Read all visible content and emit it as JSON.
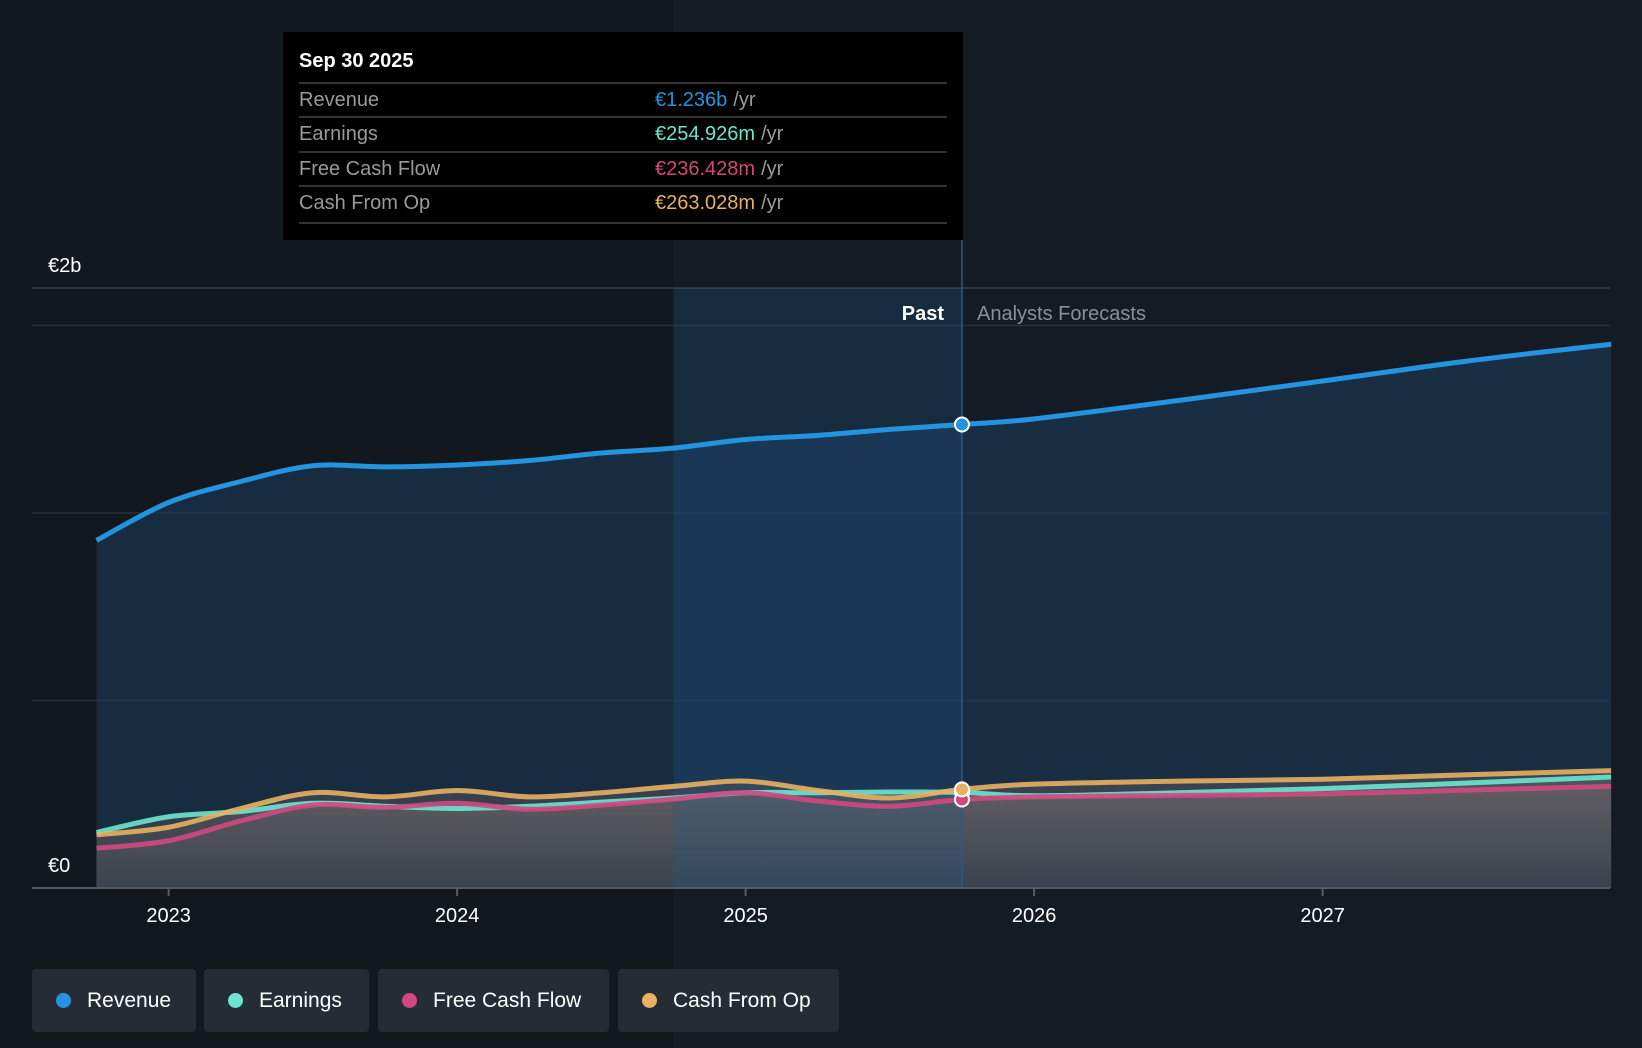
{
  "tooltip": {
    "date": "Sep 30 2025",
    "rows": [
      {
        "label": "Revenue",
        "value": "€1.236b",
        "unit": "/yr",
        "color": "#2394df"
      },
      {
        "label": "Earnings",
        "value": "€254.926m",
        "unit": "/yr",
        "color": "#6ce5d0"
      },
      {
        "label": "Free Cash Flow",
        "value": "€236.428m",
        "unit": "/yr",
        "color": "#d1487f"
      },
      {
        "label": "Cash From Op",
        "value": "€263.028m",
        "unit": "/yr",
        "color": "#e8b160"
      }
    ]
  },
  "legend": [
    {
      "label": "Revenue",
      "color": "#2394df"
    },
    {
      "label": "Earnings",
      "color": "#6ce5d0"
    },
    {
      "label": "Free Cash Flow",
      "color": "#d1487f"
    },
    {
      "label": "Cash From Op",
      "color": "#e8b160"
    }
  ],
  "chart_data": {
    "type": "line",
    "ylabel_top": "€2b",
    "ylabel_bottom": "€0",
    "ylim": [
      0,
      1.6
    ],
    "yunit": "€ billions",
    "x_ticks": [
      "2023",
      "2024",
      "2025",
      "2026",
      "2027"
    ],
    "x_tick_values": [
      2023,
      2024,
      2025,
      2026,
      2027
    ],
    "xlim": [
      2022.62,
      2028.0
    ],
    "past_label": "Past",
    "forecast_label": "Analysts Forecasts",
    "past_end": 2025.75,
    "highlight_start": 2024.75,
    "x": [
      2022.75,
      2023.0,
      2023.25,
      2023.5,
      2023.75,
      2024.0,
      2024.25,
      2024.5,
      2024.75,
      2025.0,
      2025.25,
      2025.5,
      2025.75,
      2026.0,
      2026.5,
      2027.0,
      2027.5,
      2028.0
    ],
    "series": [
      {
        "name": "Revenue",
        "color": "#2394df",
        "values": [
          0.927,
          1.028,
          1.084,
          1.126,
          1.123,
          1.128,
          1.14,
          1.16,
          1.173,
          1.196,
          1.207,
          1.223,
          1.236,
          1.251,
          1.3,
          1.352,
          1.405,
          1.45
        ]
      },
      {
        "name": "Earnings",
        "color": "#6ce5d0",
        "values": [
          0.148,
          0.19,
          0.204,
          0.226,
          0.218,
          0.212,
          0.218,
          0.229,
          0.24,
          0.254,
          0.254,
          0.256,
          0.255,
          0.246,
          0.254,
          0.265,
          0.28,
          0.296
        ]
      },
      {
        "name": "Free Cash Flow",
        "color": "#d1487f",
        "values": [
          0.106,
          0.126,
          0.179,
          0.221,
          0.215,
          0.226,
          0.21,
          0.221,
          0.237,
          0.254,
          0.232,
          0.218,
          0.236,
          0.243,
          0.247,
          0.251,
          0.261,
          0.271
        ]
      },
      {
        "name": "Cash From Op",
        "color": "#e8b160",
        "values": [
          0.142,
          0.162,
          0.212,
          0.254,
          0.243,
          0.26,
          0.243,
          0.254,
          0.271,
          0.285,
          0.26,
          0.24,
          0.263,
          0.277,
          0.285,
          0.29,
          0.302,
          0.313
        ]
      }
    ]
  }
}
